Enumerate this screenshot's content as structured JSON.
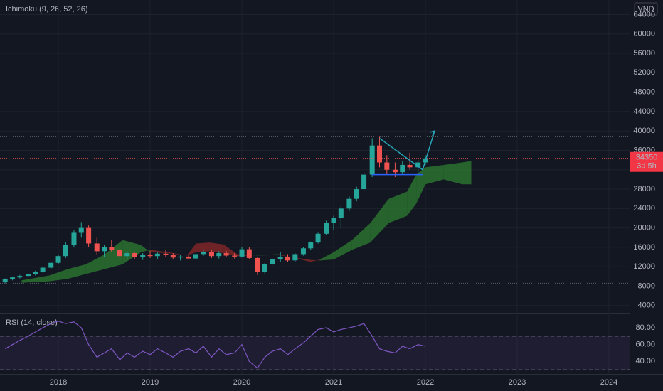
{
  "chart_data": [
    {
      "type": "candlestick",
      "title": "Ichimoku (9, 26, 52, 26)",
      "currency": "VND",
      "x": [
        2017.42,
        2017.5,
        2017.58,
        2017.67,
        2017.75,
        2017.83,
        2017.92,
        2018.0,
        2018.08,
        2018.17,
        2018.25,
        2018.33,
        2018.42,
        2018.5,
        2018.58,
        2018.67,
        2018.75,
        2018.83,
        2018.92,
        2019.0,
        2019.08,
        2019.17,
        2019.25,
        2019.33,
        2019.42,
        2019.5,
        2019.58,
        2019.67,
        2019.75,
        2019.83,
        2019.92,
        2020.0,
        2020.08,
        2020.17,
        2020.25,
        2020.33,
        2020.42,
        2020.5,
        2020.58,
        2020.67,
        2020.75,
        2020.83,
        2020.92,
        2021.0,
        2021.08,
        2021.17,
        2021.25,
        2021.33,
        2021.42,
        2021.5,
        2021.58,
        2021.67,
        2021.75,
        2021.83,
        2021.92,
        2022.0
      ],
      "open": [
        8800,
        9400,
        9800,
        10100,
        10500,
        11000,
        11800,
        12800,
        14200,
        16500,
        19000,
        20000,
        16800,
        15200,
        16000,
        15500,
        14200,
        14800,
        14000,
        14500,
        14200,
        14700,
        14400,
        13900,
        14100,
        13700,
        14600,
        15000,
        14200,
        14800,
        14300,
        14100,
        15600,
        13800,
        11000,
        12500,
        13500,
        14000,
        13300,
        14600,
        15800,
        17000,
        18800,
        21000,
        22000,
        24000,
        26000,
        28000,
        31000,
        37000,
        33500,
        32000,
        31500,
        33000,
        32500,
        33500
      ],
      "high": [
        9600,
        10000,
        10300,
        10800,
        11200,
        12000,
        13000,
        14500,
        17000,
        19500,
        21200,
        20500,
        18000,
        16500,
        17500,
        16000,
        15200,
        15000,
        14800,
        15200,
        15000,
        15400,
        14800,
        14500,
        14600,
        14900,
        15600,
        15500,
        15200,
        15300,
        14800,
        16000,
        16000,
        14000,
        12800,
        13800,
        15000,
        14600,
        14800,
        16000,
        17200,
        19000,
        21500,
        22500,
        24500,
        26500,
        28500,
        31500,
        38500,
        38800,
        35000,
        33500,
        33800,
        35500,
        34000,
        35000
      ],
      "low": [
        8600,
        9200,
        9600,
        9900,
        10200,
        10800,
        11500,
        12500,
        13800,
        16000,
        18000,
        16000,
        14500,
        14000,
        15000,
        13800,
        13500,
        13600,
        13400,
        13800,
        13600,
        14000,
        13600,
        13300,
        13500,
        13400,
        14200,
        13800,
        13700,
        14000,
        13700,
        13900,
        13500,
        10300,
        10500,
        12200,
        13000,
        13000,
        13000,
        14300,
        15500,
        16800,
        18500,
        19500,
        20000,
        23500,
        25500,
        27500,
        30500,
        32500,
        31000,
        30500,
        31000,
        32000,
        31200,
        33000
      ],
      "close": [
        9400,
        9800,
        10100,
        10500,
        11000,
        11800,
        12800,
        14200,
        16500,
        19000,
        20000,
        16800,
        15200,
        16000,
        15500,
        14200,
        14800,
        14000,
        14500,
        14200,
        14700,
        14400,
        13900,
        14100,
        13700,
        14600,
        15000,
        14200,
        14800,
        14300,
        14100,
        15600,
        13800,
        11000,
        12500,
        13500,
        14000,
        13300,
        14600,
        15800,
        17000,
        18800,
        21000,
        22000,
        24000,
        26000,
        28000,
        31000,
        37000,
        33500,
        32000,
        31500,
        33000,
        32500,
        33500,
        34350
      ],
      "up_color": "#26a69a",
      "down_color": "#ef5350",
      "cloud": {
        "x": [
          2017.6,
          2017.9,
          2018.1,
          2018.3,
          2018.5,
          2018.7,
          2018.9,
          2019.0,
          2019.2,
          2019.4,
          2019.5,
          2019.65,
          2019.8,
          2019.95,
          2020.1,
          2020.4,
          2020.75,
          2020.85,
          2021.0,
          2021.2,
          2021.4,
          2021.6,
          2021.8,
          2021.9,
          2022.0,
          2022.2,
          2022.4,
          2022.5
        ],
        "span_a": [
          9200,
          10200,
          11500,
          12500,
          14500,
          17500,
          16500,
          15000,
          14800,
          14300,
          15000,
          15200,
          14800,
          14200,
          14300,
          14600,
          13000,
          13500,
          15000,
          17500,
          21000,
          26000,
          27500,
          31000,
          32500,
          33000,
          33500,
          33800
        ],
        "span_b": [
          8700,
          9000,
          9500,
          10500,
          11500,
          12500,
          15000,
          15500,
          15000,
          14300,
          16800,
          17000,
          16600,
          14600,
          14300,
          14400,
          13400,
          13300,
          13500,
          15500,
          17000,
          21000,
          22500,
          25000,
          29000,
          30000,
          29000,
          29000
        ],
        "up_color": "#2e7d32",
        "down_color": "#8e2a2a"
      },
      "drawings": [
        {
          "x": [
            2021.42,
            2021.97
          ],
          "y": [
            31000,
            31000
          ],
          "color": "#2962ff"
        },
        {
          "x": [
            2021.5,
            2021.97
          ],
          "y": [
            38500,
            32000
          ],
          "color": "#26a6b8"
        },
        {
          "x": [
            2021.97,
            2022.1
          ],
          "y": [
            32000,
            40000
          ],
          "color": "#26a6b8"
        }
      ],
      "levels": [
        38800,
        8600
      ],
      "last_price": 34350,
      "countdown": "3d 5h",
      "xlim": [
        2017.364,
        2024.225
      ],
      "xticks": [
        2018,
        2019,
        2020,
        2021,
        2022,
        2023,
        2024
      ],
      "ylim": [
        2500,
        67000
      ],
      "yticks": [
        4000,
        8000,
        12000,
        16000,
        20000,
        24000,
        28000,
        32000,
        36000,
        40000,
        44000,
        48000,
        52000,
        56000,
        60000,
        64000
      ],
      "grid": true
    },
    {
      "type": "line",
      "title": "RSI (14, close)",
      "color": "#7e57c2",
      "x": [
        2017.42,
        2017.5,
        2017.58,
        2017.67,
        2017.75,
        2017.83,
        2017.92,
        2018.0,
        2018.08,
        2018.17,
        2018.25,
        2018.33,
        2018.42,
        2018.5,
        2018.58,
        2018.67,
        2018.75,
        2018.83,
        2018.92,
        2019.0,
        2019.08,
        2019.17,
        2019.25,
        2019.33,
        2019.42,
        2019.5,
        2019.58,
        2019.67,
        2019.75,
        2019.83,
        2019.92,
        2020.0,
        2020.08,
        2020.17,
        2020.25,
        2020.33,
        2020.42,
        2020.5,
        2020.58,
        2020.67,
        2020.75,
        2020.83,
        2020.92,
        2021.0,
        2021.08,
        2021.17,
        2021.25,
        2021.33,
        2021.42,
        2021.5,
        2021.58,
        2021.67,
        2021.75,
        2021.83,
        2021.92,
        2022.0
      ],
      "values": [
        55,
        60,
        65,
        70,
        75,
        80,
        85,
        88,
        85,
        87,
        80,
        60,
        45,
        50,
        55,
        42,
        50,
        45,
        52,
        48,
        55,
        50,
        45,
        52,
        55,
        50,
        58,
        45,
        55,
        48,
        50,
        60,
        40,
        32,
        45,
        52,
        55,
        48,
        55,
        62,
        70,
        78,
        80,
        75,
        78,
        80,
        82,
        85,
        70,
        55,
        52,
        50,
        58,
        55,
        60,
        58
      ],
      "bands": [
        30,
        50,
        70
      ],
      "xlim": [
        2017.364,
        2024.225
      ],
      "ylim": [
        25,
        97
      ],
      "yticks": [
        {
          "value": 40,
          "label": "40.00"
        },
        {
          "value": 60,
          "label": "60.00"
        },
        {
          "value": 80,
          "label": "80.00"
        }
      ]
    }
  ]
}
